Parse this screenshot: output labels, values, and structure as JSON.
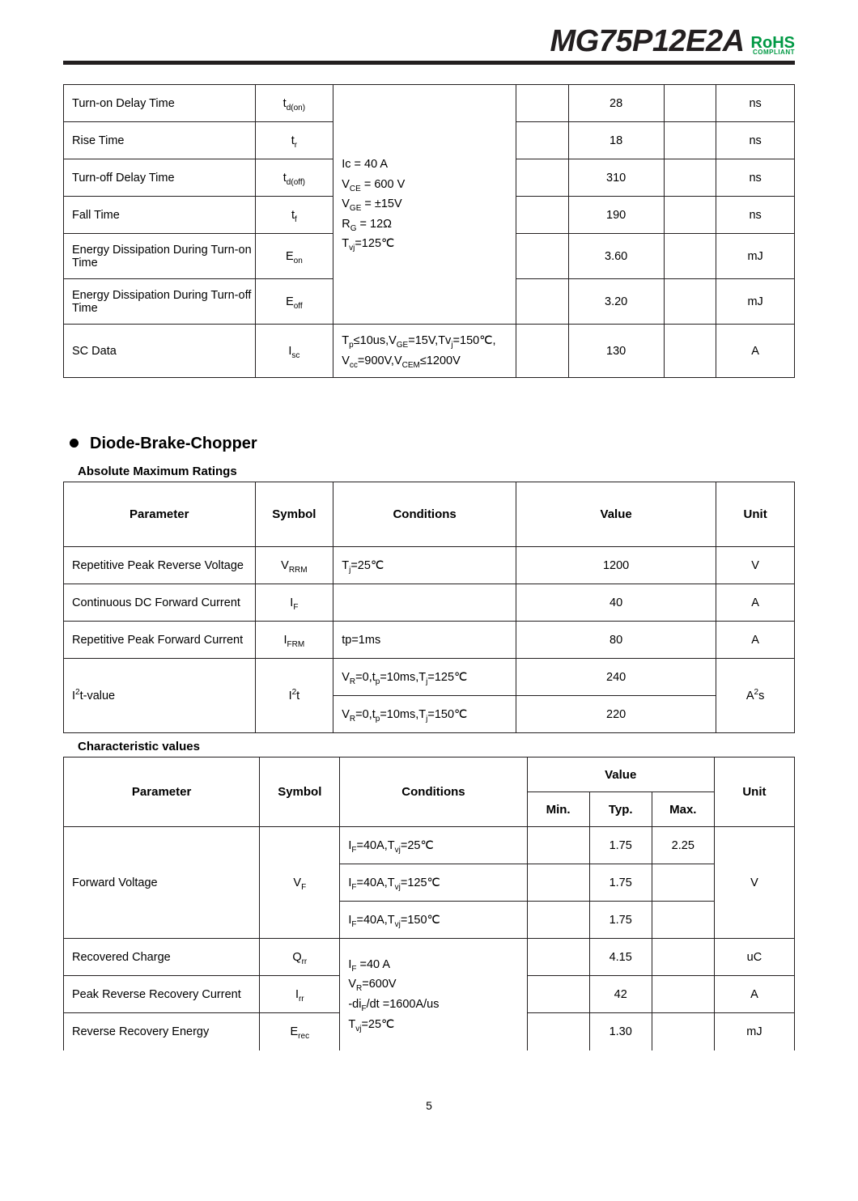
{
  "header": {
    "part_number": "MG75P12E2A",
    "rohs": "RoHS",
    "compliant": "COMPLIANT"
  },
  "table1": {
    "conditions_block": "Ic = 40 A<br>V<sub>CE</sub> = 600 V<br>V<sub>GE</sub> = ±15V<br>R<sub>G</sub> = 12Ω<br>T<sub>vj</sub>=125℃",
    "sc_conditions": "T<sub>p</sub>≤10us,V<sub>GE</sub>=15V,Tv<sub>j</sub>=150℃,<br>V<sub>cc</sub>=900V,V<sub>CEM</sub>≤1200V",
    "rows": [
      {
        "param": "Turn-on Delay Time",
        "sym": "t<sub>d(on)</sub>",
        "typ": "28",
        "unit": "ns"
      },
      {
        "param": "Rise Time",
        "sym": "t<sub>r</sub>",
        "typ": "18",
        "unit": "ns"
      },
      {
        "param": "Turn-off Delay Time",
        "sym": "t<sub>d(off)</sub>",
        "typ": "310",
        "unit": "ns"
      },
      {
        "param": "Fall Time",
        "sym": "t<sub>f</sub>",
        "typ": "190",
        "unit": "ns"
      },
      {
        "param": "Energy Dissipation During Turn-on Time",
        "sym": "E<sub>on</sub>",
        "typ": "3.60",
        "unit": "mJ"
      },
      {
        "param": "Energy Dissipation During Turn-off Time",
        "sym": "E<sub>off</sub>",
        "typ": "3.20",
        "unit": "mJ"
      },
      {
        "param": "SC Data",
        "sym": "I<sub>sc</sub>",
        "typ": "130",
        "unit": "A"
      }
    ]
  },
  "section2": {
    "title": "Diode-Brake-Chopper",
    "sub1": "Absolute Maximum Ratings",
    "sub2": "Characteristic values"
  },
  "table2": {
    "headers": {
      "param": "Parameter",
      "sym": "Symbol",
      "cond": "Conditions",
      "val": "Value",
      "unit": "Unit"
    },
    "rows": [
      {
        "param": "Repetitive Peak Reverse Voltage",
        "sym": "V<sub>RRM</sub>",
        "cond": "T<sub>j</sub>=25℃",
        "val": "1200",
        "unit": "V"
      },
      {
        "param": "Continuous DC Forward Current",
        "sym": "I<sub>F</sub>",
        "cond": "",
        "val": "40",
        "unit": "A"
      },
      {
        "param": "Repetitive Peak Forward Current",
        "sym": "I<sub>FRM</sub>",
        "cond": "tp=1ms",
        "val": "80",
        "unit": "A"
      }
    ],
    "i2t": {
      "param": "I<sup>2</sup>t-value",
      "sym": "I<sup>2</sup>t",
      "cond1": "V<sub>R</sub>=0,t<sub>p</sub>=10ms,T<sub>j</sub>=125℃",
      "val1": "240",
      "cond2": "V<sub>R</sub>=0,t<sub>p</sub>=10ms,T<sub>j</sub>=150℃",
      "val2": "220",
      "unit": "A<sup>2</sup>s"
    }
  },
  "table3": {
    "headers": {
      "param": "Parameter",
      "sym": "Symbol",
      "cond": "Conditions",
      "val": "Value",
      "min": "Min.",
      "typ": "Typ.",
      "max": "Max.",
      "unit": "Unit"
    },
    "vf": {
      "param": "Forward Voltage",
      "sym": "V<sub>F</sub>",
      "cond1": "I<sub>F</sub>=40A,T<sub>vj</sub>=25℃",
      "typ1": "1.75",
      "max1": "2.25",
      "cond2": "I<sub>F</sub>=40A,T<sub>vj</sub>=125℃",
      "typ2": "1.75",
      "cond3": "I<sub>F</sub>=40A,T<sub>vj</sub>=150℃",
      "typ3": "1.75",
      "unit": "V"
    },
    "rr_block": "I<sub>F</sub> =40 A<br>V<sub>R</sub>=600V<br>-di<sub>F</sub>/dt =1600A/us<br>T<sub>vj</sub>=25℃",
    "rows_rr": [
      {
        "param": "Recovered Charge",
        "sym": "Q<sub>rr</sub>",
        "typ": "4.15",
        "unit": "uC"
      },
      {
        "param": "Peak Reverse Recovery Current",
        "sym": "I<sub>rr</sub>",
        "typ": "42",
        "unit": "A"
      },
      {
        "param": "Reverse Recovery Energy",
        "sym": "E<sub>rec</sub>",
        "typ": "1.30",
        "unit": "mJ"
      }
    ]
  },
  "page_number": "5"
}
